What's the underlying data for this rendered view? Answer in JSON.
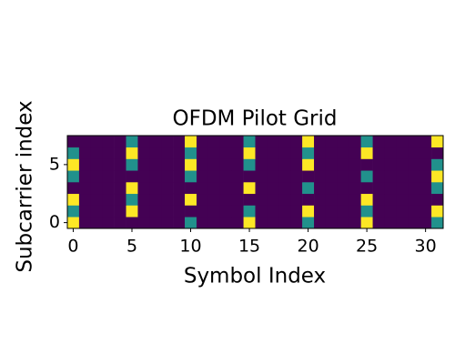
{
  "chart_data": {
    "type": "heatmap",
    "title": "OFDM Pilot Grid",
    "xlabel": "Symbol Index",
    "ylabel": "Subcarrier index",
    "xlim": [
      -0.5,
      31.5
    ],
    "ylim": [
      -0.5,
      7.5
    ],
    "xticks": [
      0,
      5,
      10,
      15,
      20,
      25,
      30
    ],
    "yticks": [
      0,
      5
    ],
    "colors": [
      "#440154",
      "#21918c",
      "#fde725"
    ],
    "z": [
      [
        2,
        0,
        0,
        0,
        0,
        0,
        0,
        0,
        0,
        0,
        1,
        0,
        0,
        0,
        0,
        2,
        0,
        0,
        0,
        0,
        1,
        0,
        0,
        0,
        0,
        2,
        0,
        0,
        0,
        0,
        0,
        1
      ],
      [
        1,
        0,
        0,
        0,
        0,
        2,
        0,
        0,
        0,
        0,
        0,
        0,
        0,
        0,
        0,
        1,
        0,
        0,
        0,
        0,
        2,
        0,
        0,
        0,
        0,
        1,
        0,
        0,
        0,
        0,
        0,
        2
      ],
      [
        2,
        0,
        0,
        0,
        0,
        1,
        0,
        0,
        0,
        0,
        2,
        0,
        0,
        0,
        0,
        0,
        0,
        0,
        0,
        0,
        0,
        0,
        0,
        0,
        0,
        2,
        0,
        0,
        0,
        0,
        0,
        0
      ],
      [
        0,
        0,
        0,
        0,
        0,
        2,
        0,
        0,
        0,
        0,
        0,
        0,
        0,
        0,
        0,
        2,
        0,
        0,
        0,
        0,
        1,
        0,
        0,
        0,
        0,
        0,
        0,
        0,
        0,
        0,
        0,
        1
      ],
      [
        1,
        0,
        0,
        0,
        0,
        0,
        0,
        0,
        0,
        0,
        1,
        0,
        0,
        0,
        0,
        0,
        0,
        0,
        0,
        0,
        0,
        0,
        0,
        0,
        0,
        1,
        0,
        0,
        0,
        0,
        0,
        2
      ],
      [
        2,
        0,
        0,
        0,
        0,
        1,
        0,
        0,
        0,
        0,
        2,
        0,
        0,
        0,
        0,
        1,
        0,
        0,
        0,
        0,
        2,
        0,
        0,
        0,
        0,
        0,
        0,
        0,
        0,
        0,
        0,
        1
      ],
      [
        1,
        0,
        0,
        0,
        0,
        2,
        0,
        0,
        0,
        0,
        1,
        0,
        0,
        0,
        0,
        2,
        0,
        0,
        0,
        0,
        1,
        0,
        0,
        0,
        0,
        2,
        0,
        0,
        0,
        0,
        0,
        0
      ],
      [
        0,
        0,
        0,
        0,
        0,
        1,
        0,
        0,
        0,
        0,
        2,
        0,
        0,
        0,
        0,
        1,
        0,
        0,
        0,
        0,
        2,
        0,
        0,
        0,
        0,
        1,
        0,
        0,
        0,
        0,
        0,
        2
      ]
    ]
  }
}
